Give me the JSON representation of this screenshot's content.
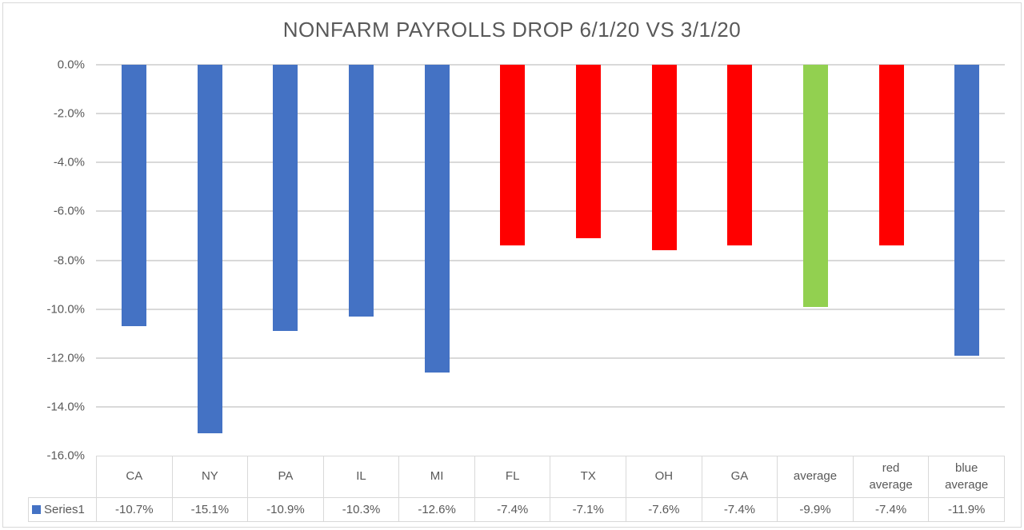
{
  "chart_data": {
    "type": "bar",
    "title": "NONFARM PAYROLLS DROP 6/1/20 VS 3/1/20",
    "categories": [
      "CA",
      "NY",
      "PA",
      "IL",
      "MI",
      "FL",
      "TX",
      "OH",
      "GA",
      "average",
      "red average",
      "blue average"
    ],
    "values": [
      -10.7,
      -15.1,
      -10.9,
      -10.3,
      -12.6,
      -7.4,
      -7.1,
      -7.6,
      -7.4,
      -9.9,
      -7.4,
      -11.9
    ],
    "value_labels": [
      "-10.7%",
      "-15.1%",
      "-10.9%",
      "-10.3%",
      "-12.6%",
      "-7.4%",
      "-7.1%",
      "-7.6%",
      "-7.4%",
      "-9.9%",
      "-7.4%",
      "-11.9%"
    ],
    "bar_colors": [
      "#4472C4",
      "#4472C4",
      "#4472C4",
      "#4472C4",
      "#4472C4",
      "#FF0000",
      "#FF0000",
      "#FF0000",
      "#FF0000",
      "#92D050",
      "#FF0000",
      "#4472C4"
    ],
    "series": [
      {
        "name": "Series1",
        "values": [
          -10.7,
          -15.1,
          -10.9,
          -10.3,
          -12.6,
          -7.4,
          -7.1,
          -7.6,
          -7.4,
          -9.9,
          -7.4,
          -11.9
        ]
      }
    ],
    "legend": {
      "label": "Series1",
      "swatch_color": "#4472C4"
    },
    "ylim": [
      -16,
      0
    ],
    "yticks": {
      "labels": [
        "0.0%",
        "-2.0%",
        "-4.0%",
        "-6.0%",
        "-8.0%",
        "-10.0%",
        "-12.0%",
        "-14.0%",
        "-16.0%"
      ],
      "values": [
        0,
        -2,
        -4,
        -6,
        -8,
        -10,
        -12,
        -14,
        -16
      ]
    },
    "grid": true,
    "data_table_shown": true,
    "legend_position": "data-table-left",
    "colors": {
      "blue": "#4472C4",
      "red": "#FF0000",
      "green": "#92D050",
      "gridline": "#D9D9D9",
      "text": "#595959",
      "border": "#D9D9D9"
    }
  }
}
